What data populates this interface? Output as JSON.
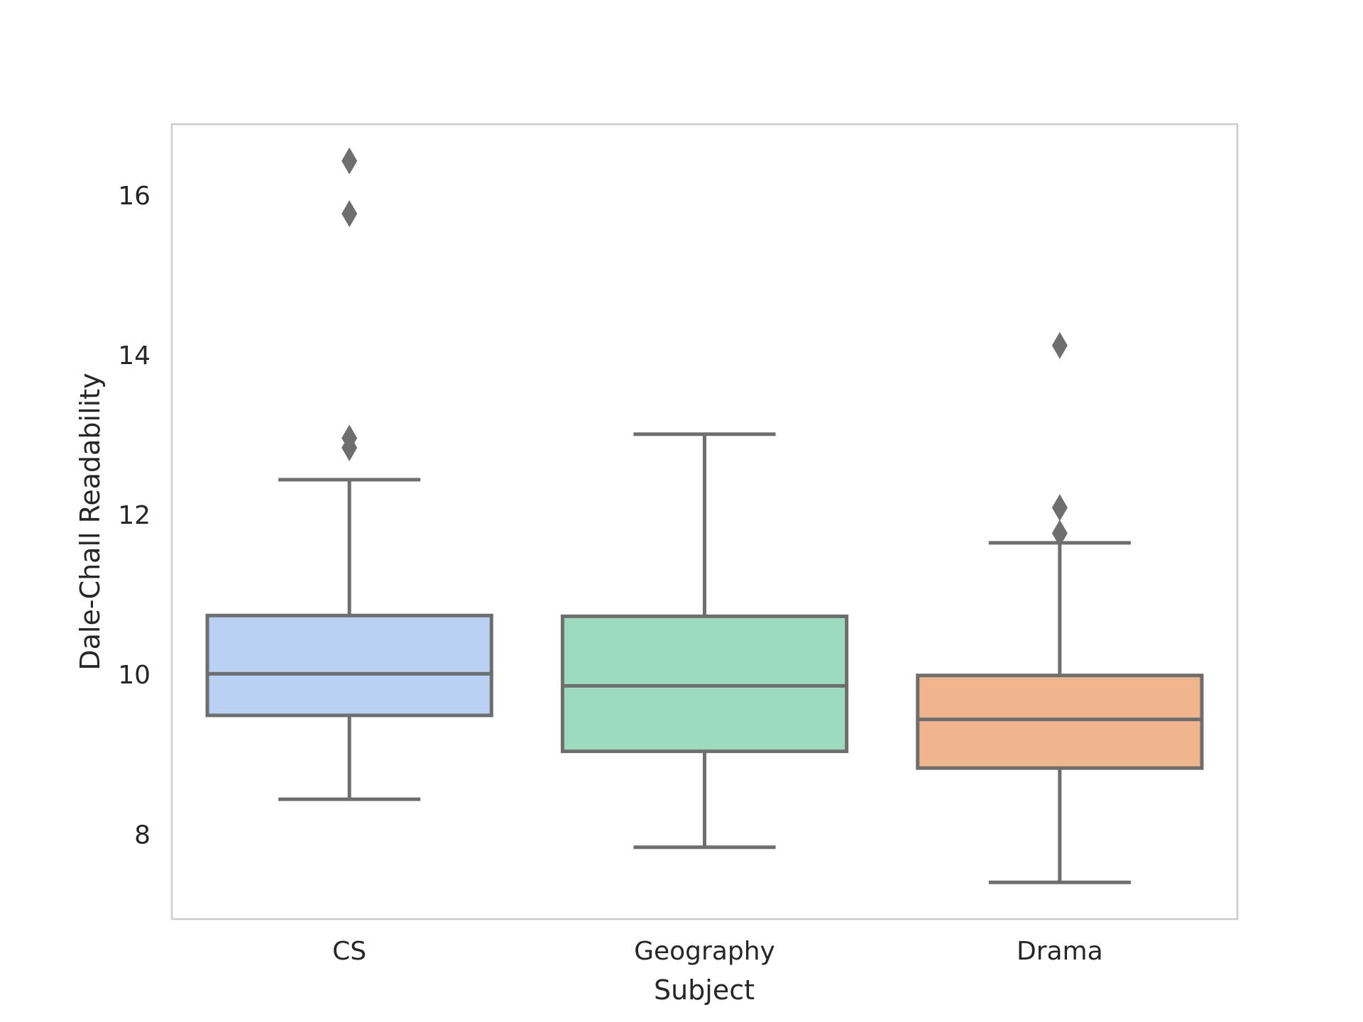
{
  "chart_data": {
    "type": "box",
    "title": "",
    "xlabel": "Subject",
    "ylabel": "Dale-Chall Readability",
    "ylim": [
      6.95,
      16.9
    ],
    "yticks": [
      8,
      10,
      12,
      14,
      16
    ],
    "grid": false,
    "legend": "none",
    "colors": {
      "stroke": "#6e6e6e",
      "text": "#262626",
      "frame": "#cccccc"
    },
    "categories": [
      "CS",
      "Geography",
      "Drama"
    ],
    "boxes": [
      {
        "category": "CS",
        "whisker_low": 8.45,
        "q1": 9.5,
        "median": 10.02,
        "q3": 10.75,
        "whisker_high": 12.45,
        "outliers": [
          12.85,
          12.97,
          15.78,
          16.44
        ],
        "color": "#b9d0f3"
      },
      {
        "category": "Geography",
        "whisker_low": 7.85,
        "q1": 9.05,
        "median": 9.87,
        "q3": 10.74,
        "whisker_high": 13.02,
        "outliers": [],
        "color": "#9ddbbf"
      },
      {
        "category": "Drama",
        "whisker_low": 7.41,
        "q1": 8.84,
        "median": 9.45,
        "q3": 10.0,
        "whisker_high": 11.66,
        "outliers": [
          11.78,
          12.1,
          14.13
        ],
        "color": "#efb58c"
      }
    ]
  }
}
